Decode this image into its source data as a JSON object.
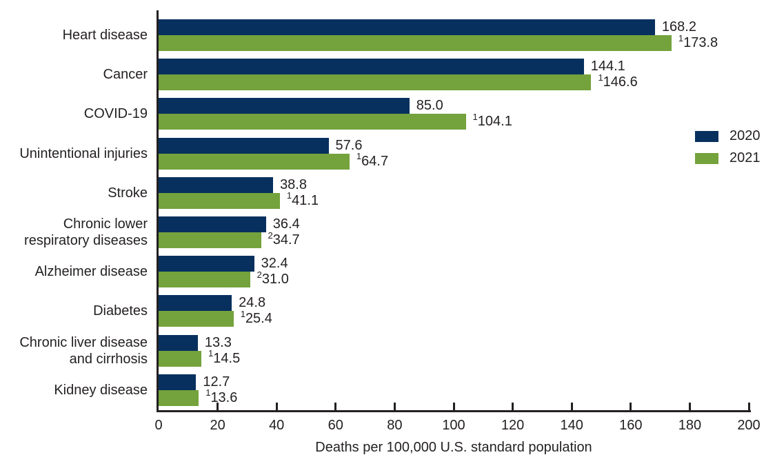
{
  "colors": {
    "bar_2020": "#07305e",
    "bar_2021": "#74a23c",
    "axis": "#231f20",
    "text": "#231f20"
  },
  "legend": [
    {
      "label": "2020",
      "color_key": "bar_2020"
    },
    {
      "label": "2021",
      "color_key": "bar_2021"
    }
  ],
  "chart_data": {
    "type": "bar",
    "orientation": "horizontal",
    "title": "",
    "xlabel": "Deaths per 100,000 U.S. standard population",
    "ylabel": "",
    "xlim": [
      0,
      200
    ],
    "xticks": [
      0,
      20,
      40,
      60,
      80,
      100,
      120,
      140,
      160,
      180,
      200
    ],
    "grid": false,
    "legend_position": "right",
    "categories": [
      "Heart disease",
      "Cancer",
      "COVID-19",
      "Unintentional injuries",
      "Stroke",
      "Chronic lower respiratory diseases",
      "Alzheimer disease",
      "Diabetes",
      "Chronic liver disease and cirrhosis",
      "Kidney disease"
    ],
    "series": [
      {
        "name": "2020",
        "color_key": "bar_2020",
        "values": [
          168.2,
          144.1,
          85.0,
          57.6,
          38.8,
          36.4,
          32.4,
          24.8,
          13.3,
          12.7
        ],
        "sups": null
      },
      {
        "name": "2021",
        "color_key": "bar_2021",
        "values": [
          173.8,
          146.6,
          104.1,
          64.7,
          41.1,
          34.7,
          31.0,
          25.4,
          14.5,
          13.6
        ],
        "sups": [
          "1",
          "1",
          "1",
          "1",
          "1",
          "2",
          "2",
          "1",
          "1",
          "1"
        ]
      }
    ]
  }
}
